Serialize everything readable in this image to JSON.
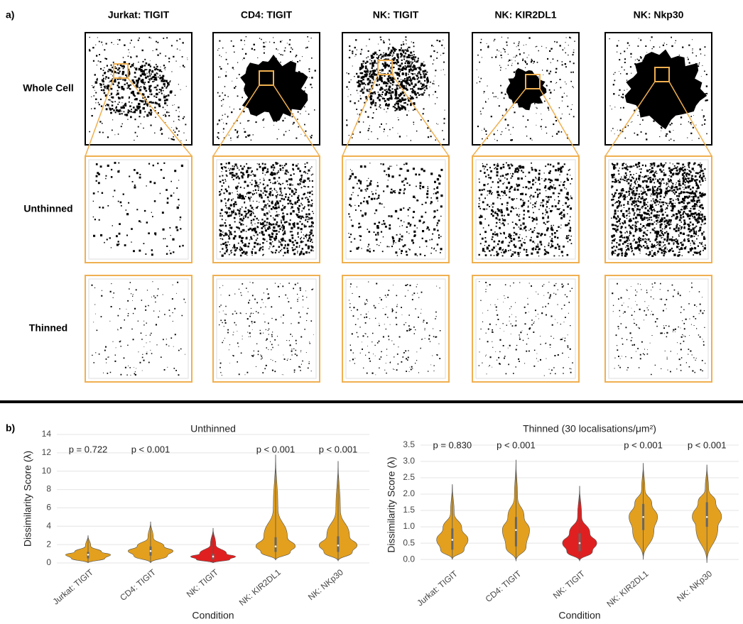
{
  "panel_a": {
    "label": "a)",
    "columns": [
      "Jurkat: TIGIT",
      "CD4: TIGIT",
      "NK: TIGIT",
      "NK: KIR2DL1",
      "NK: Nkp30"
    ],
    "rows": [
      "Whole Cell",
      "Unthinned",
      "Thinned"
    ]
  },
  "panel_b": {
    "label": "b)"
  },
  "chart_data": [
    {
      "type": "violin",
      "title": "Unthinned",
      "y_label": "Dissimilarity Score (λ)",
      "x_label": "Condition",
      "categories": [
        "Jurkat: TIGIT",
        "CD4: TIGIT",
        "NK: TIGIT",
        "NK: KIR2DL1",
        "NK: NKp30"
      ],
      "colors": [
        "#e3a01f",
        "#e3a01f",
        "#e02020",
        "#e3a01f",
        "#e3a01f"
      ],
      "values": [
        {
          "min": 0,
          "q1": 0.5,
          "median": 0.9,
          "q3": 1.2,
          "max": 3.0
        },
        {
          "min": 0,
          "q1": 0.8,
          "median": 1.3,
          "q3": 1.8,
          "max": 4.5
        },
        {
          "min": 0,
          "q1": 0.4,
          "median": 0.7,
          "q3": 1.0,
          "max": 3.8
        },
        {
          "min": 0.3,
          "q1": 1.2,
          "median": 1.8,
          "q3": 2.8,
          "max": 11.8
        },
        {
          "min": 0.2,
          "q1": 1.2,
          "median": 1.9,
          "q3": 2.9,
          "max": 11.1
        }
      ],
      "annotations": [
        "p = 0.722",
        "p < 0.001",
        null,
        "p < 0.001",
        "p < 0.001"
      ],
      "ylim": [
        0,
        14
      ],
      "yticks": [
        0,
        2,
        4,
        6,
        8,
        10,
        12,
        14
      ],
      "grid": true
    },
    {
      "type": "violin",
      "title": "Thinned (30 localisations/μm²)",
      "y_label": "Dissimilarity Score (λ)",
      "x_label": "Condition",
      "categories": [
        "Jurkat: TIGIT",
        "CD4: TIGIT",
        "NK: TIGIT",
        "NK: KIR2DL1",
        "NK: NKp30"
      ],
      "colors": [
        "#e3a01f",
        "#e3a01f",
        "#e02020",
        "#e3a01f",
        "#e3a01f"
      ],
      "values": [
        {
          "min": 0,
          "q1": 0.3,
          "median": 0.6,
          "q3": 0.95,
          "max": 2.3
        },
        {
          "min": -0.05,
          "q1": 0.4,
          "median": 0.9,
          "q3": 1.3,
          "max": 3.05
        },
        {
          "min": -0.05,
          "q1": 0.25,
          "median": 0.5,
          "q3": 0.8,
          "max": 2.25
        },
        {
          "min": 0,
          "q1": 0.9,
          "median": 1.3,
          "q3": 1.7,
          "max": 2.95
        },
        {
          "min": -0.1,
          "q1": 1.0,
          "median": 1.3,
          "q3": 1.75,
          "max": 2.9
        }
      ],
      "annotations": [
        "p = 0.830",
        "p < 0.001",
        null,
        "p < 0.001",
        "p < 0.001"
      ],
      "ylim": [
        -0.15,
        3.5
      ],
      "yticks": [
        {
          "value": 0,
          "label": "0.0"
        },
        0.5,
        {
          "value": 1,
          "label": "1.0"
        },
        1.5,
        {
          "value": 2,
          "label": "2.0"
        },
        2.5,
        {
          "value": 3,
          "label": "3.0"
        },
        3.5
      ],
      "grid": true
    }
  ]
}
